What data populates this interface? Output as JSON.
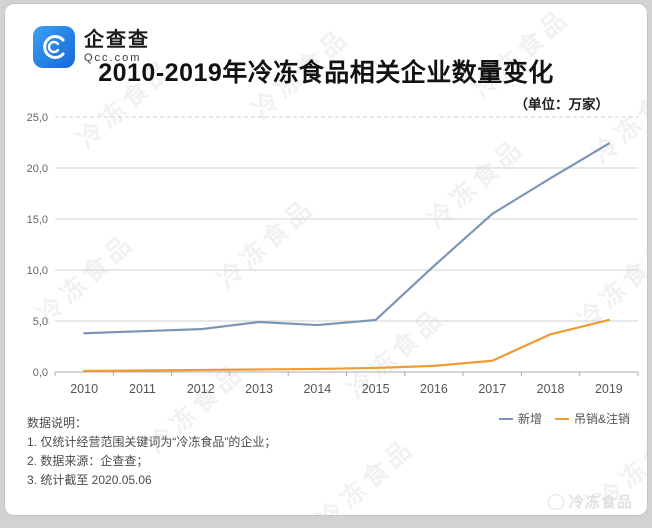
{
  "header": {
    "logo": {
      "brand_cn": "企查查",
      "brand_domain": "Qcc.com"
    },
    "title": "2010-2019年冷冻食品相关企业数量变化",
    "unit_label": "（单位：万家）"
  },
  "chart_data": {
    "type": "line",
    "title": "2010-2019年冷冻食品相关企业数量变化",
    "unit": "万家",
    "categories": [
      "2010",
      "2011",
      "2012",
      "2013",
      "2014",
      "2015",
      "2016",
      "2017",
      "2018",
      "2019"
    ],
    "series": [
      {
        "name": "新增",
        "color": "#7d95b5",
        "values": [
          3.8,
          4.0,
          4.2,
          4.9,
          4.6,
          5.1,
          10.4,
          15.5,
          19.0,
          22.4
        ]
      },
      {
        "name": "吊销&注销",
        "color": "#ef9b33",
        "values": [
          0.1,
          0.15,
          0.2,
          0.25,
          0.3,
          0.4,
          0.6,
          1.1,
          3.7,
          5.1
        ]
      }
    ],
    "xlabel": "",
    "ylabel": "",
    "ylim": [
      0,
      25
    ],
    "ytick_step": 5,
    "ytick_labels": [
      "0,0",
      "5,0",
      "10,0",
      "15,0",
      "20,0",
      "25,0"
    ],
    "grid": true,
    "legend_position": "bottom-right"
  },
  "footnotes": {
    "heading": "数据说明：",
    "items": [
      "1. 仅统计经营范围关键词为“冷冻食品”的企业；",
      "2. 数据来源：企查查；",
      "3. 统计截至 2020.05.06"
    ]
  },
  "watermark": {
    "text": "冷冻食品",
    "badge_text": "冷冻食品"
  },
  "colors": {
    "brand_blue": "#1b7ce0",
    "grid": "#d0d2d4",
    "axis": "#a8abae"
  }
}
